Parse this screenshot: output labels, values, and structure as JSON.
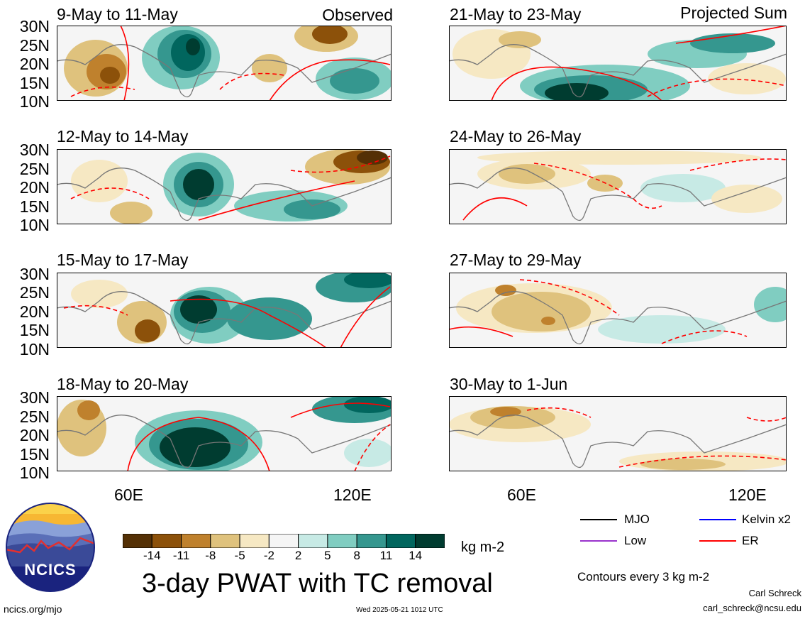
{
  "panels": [
    {
      "title": "9-May to 11-May",
      "tag": "Observed"
    },
    {
      "title": "12-May to 14-May",
      "tag": ""
    },
    {
      "title": "15-May to 17-May",
      "tag": ""
    },
    {
      "title": "18-May to 20-May",
      "tag": ""
    },
    {
      "title": "21-May to 23-May",
      "tag": "Projected Sum"
    },
    {
      "title": "24-May to 26-May",
      "tag": ""
    },
    {
      "title": "27-May to 29-May",
      "tag": ""
    },
    {
      "title": "30-May to 1-Jun",
      "tag": ""
    }
  ],
  "lat_labels": [
    "30N",
    "25N",
    "20N",
    "15N",
    "10N"
  ],
  "lon_labels": [
    "60E",
    "120E"
  ],
  "colorbar": {
    "ticks": [
      "-14",
      "-11",
      "-8",
      "-5",
      "-2",
      "2",
      "5",
      "8",
      "11",
      "14"
    ],
    "colors": [
      "#543005",
      "#8c510a",
      "#bf812d",
      "#dfc27d",
      "#f6e8c3",
      "#f5f5f5",
      "#c7eae5",
      "#80cdc1",
      "#35978f",
      "#01665e",
      "#003c30"
    ],
    "units": "kg m-2"
  },
  "title": "3-day PWAT with TC removal",
  "legend": {
    "items": [
      {
        "label": "MJO",
        "color": "#000000"
      },
      {
        "label": "Kelvin x2",
        "color": "#0000ff"
      },
      {
        "label": "Low",
        "color": "#9933cc"
      },
      {
        "label": "ER",
        "color": "#ff0000"
      }
    ],
    "contours": "Contours every 3 kg m-2"
  },
  "logo_text": "NCICS",
  "footer": {
    "url": "ncics.org/mjo",
    "timestamp": "Wed 2025-05-21 1012 UTC",
    "author": "Carl Schreck",
    "email": "carl_schreck@ncsu.edu"
  }
}
